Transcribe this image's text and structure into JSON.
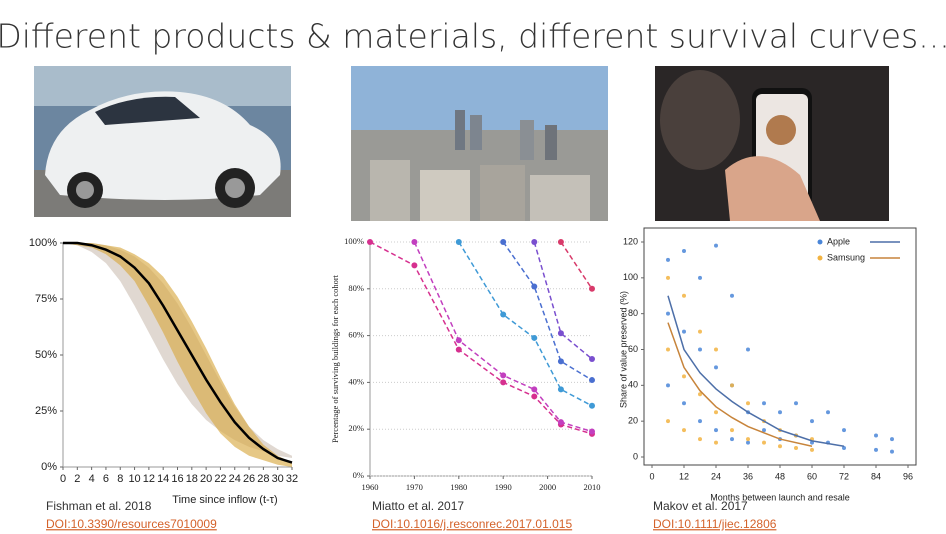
{
  "title": "Different products & materials, different survival curves...",
  "captions": [
    {
      "author": "Fishman et al. 2018",
      "doi": "DOI:10.3390/resources7010009"
    },
    {
      "author": "Miatto et al. 2017",
      "doi": "DOI:10.1016/j.resconrec.2017.01.015"
    },
    {
      "author": "Makov et al. 2017",
      "doi": "DOI:10.1111/jiec.12806"
    }
  ],
  "chart_data": [
    {
      "type": "line",
      "xlabel": "Time since inflow (t-τ)",
      "x": [
        0,
        2,
        4,
        6,
        8,
        10,
        12,
        14,
        16,
        18,
        20,
        22,
        24,
        26,
        28,
        30,
        32
      ],
      "bands": [
        {
          "color": "#cfc3b8",
          "lower": [
            100,
            99,
            96,
            91,
            83,
            72,
            60,
            48,
            37,
            28,
            21,
            16,
            12,
            9,
            7,
            5,
            4
          ],
          "upper": [
            100,
            100,
            100,
            99,
            97,
            94,
            89,
            82,
            73,
            62,
            50,
            38,
            27,
            18,
            12,
            8,
            5
          ]
        },
        {
          "color": "#d9ab45",
          "lower": [
            100,
            99,
            98,
            95,
            90,
            83,
            72,
            60,
            47,
            35,
            24,
            15,
            9,
            5,
            3,
            1,
            0
          ],
          "upper": [
            100,
            100,
            100,
            99,
            98,
            95,
            91,
            85,
            76,
            65,
            53,
            40,
            28,
            18,
            10,
            5,
            2
          ]
        }
      ],
      "series": [
        {
          "color": "#000000",
          "values": [
            100,
            100,
            99,
            97,
            94,
            89,
            82,
            72,
            61,
            50,
            39,
            29,
            20,
            13,
            8,
            4,
            2
          ]
        }
      ],
      "xlim": [
        0,
        32
      ],
      "xticks": [
        0,
        2,
        4,
        6,
        8,
        10,
        12,
        14,
        16,
        18,
        20,
        22,
        24,
        26,
        28,
        30,
        32
      ],
      "ylim": [
        0,
        100
      ],
      "yticks": [
        {
          "value": 0,
          "label": "0%"
        },
        {
          "value": 25,
          "label": "25%"
        },
        {
          "value": 50,
          "label": "50%"
        },
        {
          "value": 75,
          "label": "75%"
        },
        {
          "value": 100,
          "label": "100%"
        }
      ],
      "grid": false
    },
    {
      "type": "line",
      "ylabel": "Percentage of surviving buildings for each cohort",
      "series": [
        {
          "color": "#d6308f",
          "x": [
            1960,
            1970,
            1980,
            1990,
            1997,
            2003,
            2010
          ],
          "values": [
            100,
            90,
            54,
            40,
            34,
            22,
            18
          ]
        },
        {
          "color": "#c23fbf",
          "x": [
            1970,
            1980,
            1990,
            1997,
            2003,
            2010
          ],
          "values": [
            100,
            58,
            43,
            37,
            23,
            19
          ]
        },
        {
          "color": "#3f9ad6",
          "x": [
            1980,
            1990,
            1997,
            2003,
            2010
          ],
          "values": [
            100,
            69,
            59,
            37,
            30
          ]
        },
        {
          "color": "#4a6fd0",
          "x": [
            1990,
            1997,
            2003,
            2010
          ],
          "values": [
            100,
            81,
            49,
            41
          ]
        },
        {
          "color": "#7a4fcf",
          "x": [
            1997,
            2003,
            2010
          ],
          "values": [
            100,
            61,
            50
          ]
        },
        {
          "color": "#d83a6a",
          "x": [
            2003,
            2010
          ],
          "values": [
            100,
            80
          ]
        }
      ],
      "dashed": true,
      "xlim": [
        1960,
        2010
      ],
      "xticks": [
        1960,
        1970,
        1980,
        1990,
        2000,
        2010
      ],
      "ylim": [
        0,
        100
      ],
      "yticks": [
        {
          "value": 0,
          "label": "0%"
        },
        {
          "value": 20,
          "label": "20%"
        },
        {
          "value": 40,
          "label": "40%"
        },
        {
          "value": 60,
          "label": "60%"
        },
        {
          "value": 80,
          "label": "80%"
        },
        {
          "value": 100,
          "label": "100%"
        }
      ],
      "grid": true
    },
    {
      "type": "scatter",
      "xlabel": "Months between launch and resale",
      "ylabel": "Share of value preserved (%)",
      "series": [
        {
          "name": "Apple",
          "color": "#4a86d8",
          "line_color": "#4d6fa8",
          "x": [
            6,
            6,
            6,
            12,
            12,
            12,
            18,
            18,
            18,
            24,
            24,
            24,
            30,
            30,
            30,
            36,
            36,
            36,
            42,
            42,
            48,
            48,
            54,
            54,
            60,
            60,
            66,
            66,
            72,
            72,
            84,
            84,
            90,
            90
          ],
          "values": [
            110,
            80,
            40,
            115,
            70,
            30,
            100,
            60,
            20,
            118,
            50,
            15,
            90,
            40,
            10,
            60,
            25,
            8,
            30,
            15,
            25,
            10,
            30,
            12,
            20,
            8,
            25,
            8,
            15,
            5,
            12,
            4,
            10,
            3
          ],
          "fit_x": [
            6,
            12,
            18,
            24,
            30,
            36,
            48,
            60,
            72
          ],
          "fit_values": [
            90,
            60,
            47,
            38,
            31,
            25,
            15,
            9,
            6
          ]
        },
        {
          "name": "Samsung",
          "color": "#f2b341",
          "line_color": "#c7843b",
          "x": [
            6,
            6,
            6,
            12,
            12,
            12,
            18,
            18,
            18,
            24,
            24,
            24,
            30,
            30,
            36,
            36,
            42,
            42,
            48,
            48,
            54,
            54,
            60,
            60
          ],
          "values": [
            100,
            60,
            20,
            90,
            45,
            15,
            70,
            35,
            10,
            60,
            25,
            8,
            40,
            15,
            30,
            10,
            20,
            8,
            15,
            6,
            12,
            5,
            10,
            4
          ],
          "fit_x": [
            6,
            12,
            18,
            24,
            30,
            36,
            48,
            60
          ],
          "fit_values": [
            75,
            50,
            37,
            28,
            22,
            17,
            10,
            6
          ]
        }
      ],
      "legend": "top-right",
      "xlim": [
        0,
        96
      ],
      "xticks": [
        0,
        12,
        24,
        36,
        48,
        60,
        72,
        84,
        96
      ],
      "ylim": [
        0,
        120
      ],
      "yticks": [
        0,
        20,
        40,
        60,
        80,
        100,
        120
      ],
      "grid": false
    }
  ]
}
